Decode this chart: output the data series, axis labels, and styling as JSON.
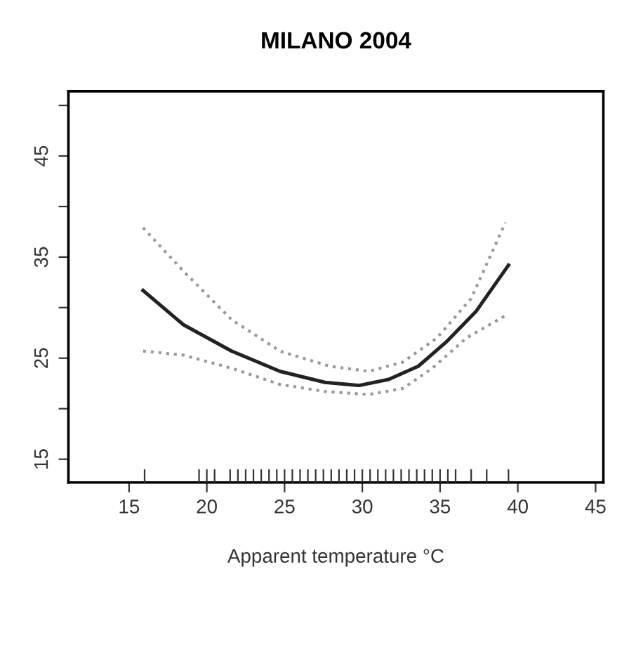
{
  "chart_data": {
    "type": "line",
    "title": "MILANO 2004",
    "xlabel": "Apparent temperature °C",
    "xlim": [
      11.1,
      45.5
    ],
    "ylim": [
      12.7,
      51.4
    ],
    "xticks": [
      15,
      20,
      25,
      30,
      35,
      40,
      45
    ],
    "yticks": [
      15,
      {
        "value": 20,
        "label": null
      },
      25,
      {
        "value": 30,
        "label": null
      },
      35,
      {
        "value": 40,
        "label": null
      },
      45,
      {
        "value": 50,
        "label": null
      }
    ],
    "grid": false,
    "legend": false,
    "series": [
      {
        "color": "#222222",
        "line_style": "solid",
        "x": [
          15.9,
          18.5,
          21.6,
          24.7,
          27.6,
          29.8,
          31.7,
          33.6,
          35.4,
          37.3,
          39.4
        ],
        "values": [
          31.7,
          28.3,
          25.7,
          23.7,
          22.6,
          22.3,
          22.9,
          24.2,
          26.6,
          29.6,
          34.2
        ]
      },
      {
        "color": "#999999",
        "line_style": "dotted",
        "x": [
          15.9,
          18.5,
          21.6,
          24.7,
          27.9,
          30.4,
          32.6,
          34.8,
          37.0,
          39.2
        ],
        "values": [
          37.9,
          33.6,
          28.8,
          25.7,
          24.2,
          23.7,
          24.6,
          27.0,
          30.9,
          38.4
        ]
      },
      {
        "color": "#999999",
        "line_style": "dotted",
        "x": [
          15.9,
          18.5,
          21.6,
          24.7,
          27.6,
          30.4,
          32.6,
          34.5,
          36.7,
          39.2
        ],
        "values": [
          25.7,
          25.3,
          24.0,
          22.4,
          21.7,
          21.4,
          22.0,
          24.0,
          27.0,
          29.2
        ]
      },
      {
        "type": "bar",
        "color": "#333333",
        "x": [
          16,
          19.5,
          20,
          20.5,
          21.5,
          22,
          22.5,
          23,
          23.5,
          24,
          24.5,
          25,
          25.5,
          26,
          26.5,
          27,
          27.5,
          28,
          28.5,
          29,
          29.5,
          30,
          30.5,
          31,
          31.5,
          32,
          32.5,
          33,
          33.5,
          34,
          34.5,
          35,
          35.5,
          36,
          37,
          38,
          39.4
        ],
        "values": [
          14,
          14,
          14,
          14,
          14,
          14,
          14,
          14,
          14,
          14,
          14,
          14,
          14,
          14,
          14,
          14,
          14,
          14,
          14,
          14,
          14,
          14,
          14,
          14,
          14,
          14,
          14,
          14,
          14,
          14,
          14,
          14,
          14,
          14,
          14,
          14,
          14
        ]
      }
    ]
  }
}
